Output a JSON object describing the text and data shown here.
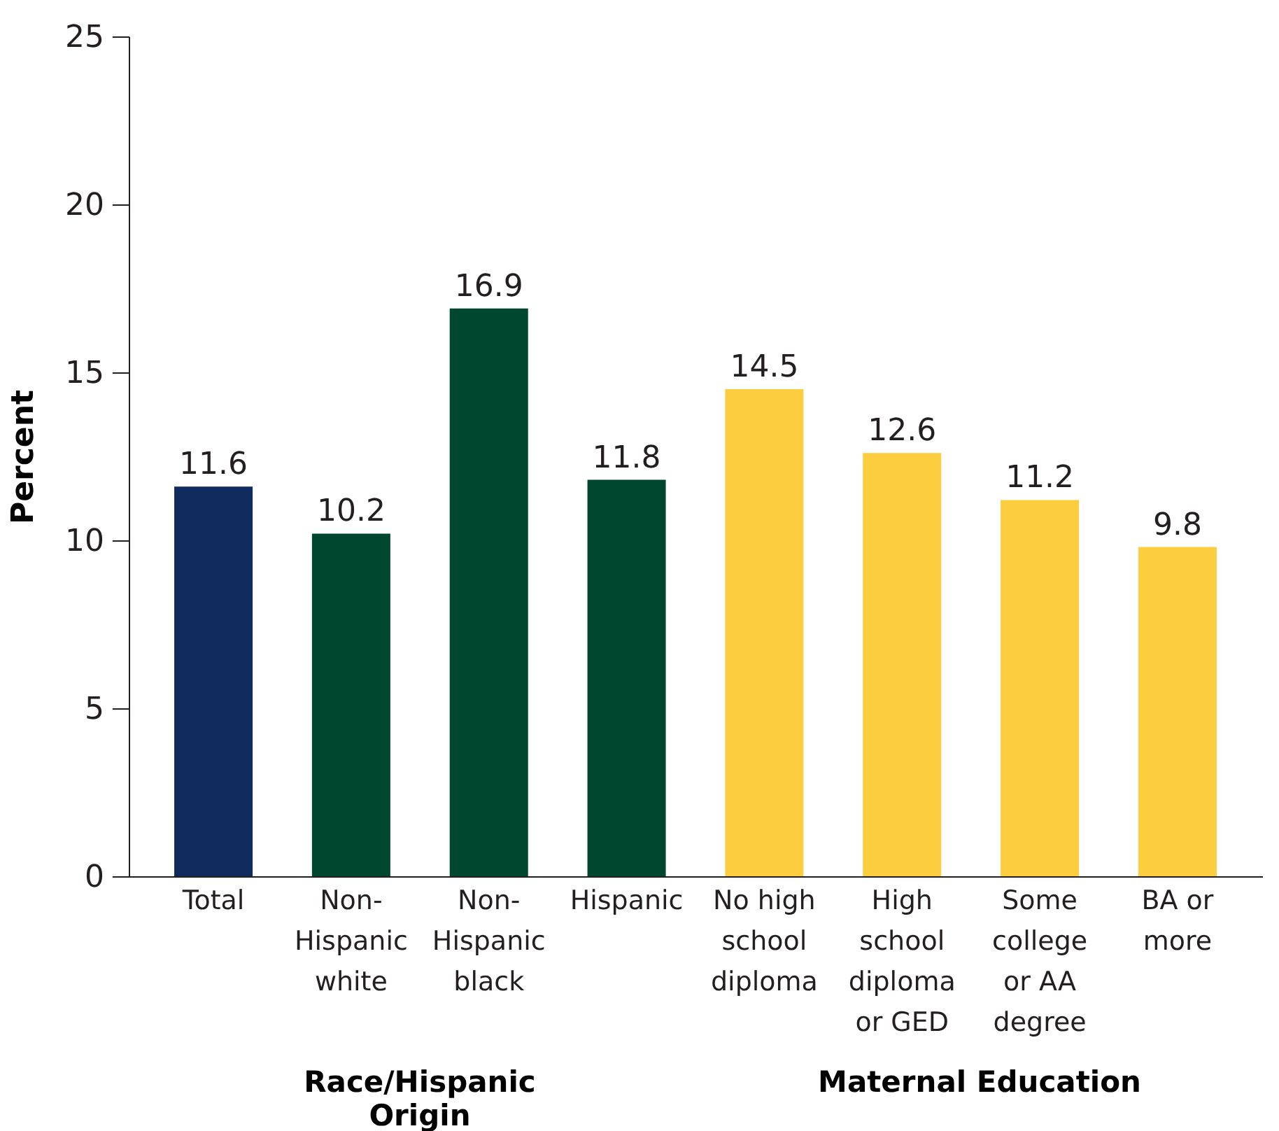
{
  "chart_data": {
    "type": "bar",
    "ylabel": "Percent",
    "categories": [
      "Total",
      "Non-Hispanic white",
      "Non-Hispanic black",
      "Hispanic",
      "No high school diploma",
      "High school diploma or GED",
      "Some college or AA degree",
      "BA or more"
    ],
    "values": [
      11.6,
      10.2,
      16.9,
      11.8,
      14.5,
      12.6,
      11.2,
      9.8
    ],
    "colors": [
      "#0f2a5c",
      "#004730",
      "#004730",
      "#004730",
      "#fccd3f",
      "#fccd3f",
      "#fccd3f",
      "#fccd3f"
    ],
    "ylim": [
      0,
      25
    ],
    "yticks": [
      0,
      5,
      10,
      15,
      20,
      25
    ],
    "grid": false,
    "data_labels": true,
    "annotations": [
      "Race/Hispanic Origin",
      "Maternal Education"
    ]
  }
}
